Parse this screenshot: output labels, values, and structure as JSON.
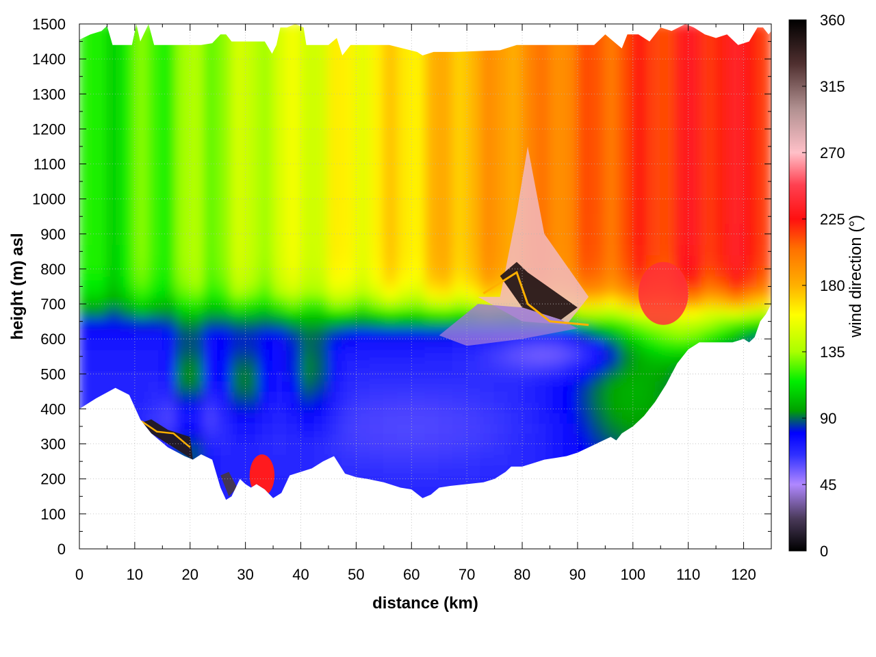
{
  "chart_data": {
    "type": "heatmap",
    "title": "",
    "xlabel": "distance (km)",
    "ylabel": "height (m) asl",
    "colorbar_label": "wind direction (°)",
    "xlim": [
      0,
      125
    ],
    "ylim": [
      0,
      1500
    ],
    "x_ticks": [
      0,
      10,
      20,
      30,
      40,
      50,
      60,
      70,
      80,
      90,
      100,
      110,
      120
    ],
    "y_ticks": [
      0,
      100,
      200,
      300,
      400,
      500,
      600,
      700,
      800,
      900,
      1000,
      1100,
      1200,
      1300,
      1400,
      1500
    ],
    "colorbar_range": [
      0,
      360
    ],
    "colorbar_ticks": [
      0,
      45,
      90,
      135,
      180,
      225,
      270,
      315,
      360
    ],
    "grid": true,
    "colorbar_stops": [
      {
        "value": 0,
        "color": "#000000"
      },
      {
        "value": 22,
        "color": "#4a3a5a"
      },
      {
        "value": 45,
        "color": "#b088ff"
      },
      {
        "value": 65,
        "color": "#3030ff"
      },
      {
        "value": 80,
        "color": "#0000ff"
      },
      {
        "value": 95,
        "color": "#00a000"
      },
      {
        "value": 115,
        "color": "#00ee00"
      },
      {
        "value": 135,
        "color": "#aaff00"
      },
      {
        "value": 160,
        "color": "#ffff00"
      },
      {
        "value": 180,
        "color": "#ffb000"
      },
      {
        "value": 205,
        "color": "#ff7000"
      },
      {
        "value": 225,
        "color": "#ff1010"
      },
      {
        "value": 248,
        "color": "#ff4050"
      },
      {
        "value": 270,
        "color": "#ffc0c8"
      },
      {
        "value": 300,
        "color": "#b09090"
      },
      {
        "value": 330,
        "color": "#503030"
      },
      {
        "value": 360,
        "color": "#000000"
      }
    ],
    "terrain_bottom": {
      "x": [
        0,
        3,
        6.5,
        9,
        11,
        13,
        16,
        19,
        20.5,
        22,
        24,
        25.5,
        26.5,
        27.5,
        29,
        30,
        31,
        32,
        33.5,
        35,
        36.5,
        38,
        40,
        42,
        44,
        46,
        47,
        48,
        49,
        50,
        52,
        55,
        58,
        60,
        62,
        63.5,
        65,
        67,
        70,
        73,
        75,
        77,
        78,
        80,
        82,
        84,
        86,
        88,
        90,
        92,
        94,
        96,
        97,
        98,
        100,
        102,
        104,
        106,
        108,
        110,
        112,
        114,
        116,
        118,
        120,
        121,
        122,
        123,
        124,
        125
      ],
      "y": [
        400,
        430,
        460,
        440,
        370,
        330,
        290,
        265,
        255,
        270,
        255,
        175,
        140,
        150,
        200,
        185,
        175,
        185,
        170,
        145,
        160,
        210,
        220,
        230,
        250,
        265,
        240,
        215,
        210,
        205,
        200,
        190,
        175,
        170,
        145,
        155,
        175,
        180,
        185,
        190,
        200,
        220,
        235,
        235,
        245,
        255,
        260,
        265,
        275,
        290,
        305,
        320,
        310,
        330,
        350,
        380,
        420,
        470,
        530,
        570,
        590,
        590,
        590,
        590,
        600,
        590,
        605,
        650,
        670,
        700
      ]
    },
    "terrain_top": {
      "x": [
        0,
        2,
        4,
        5,
        6,
        9.5,
        10.3,
        11,
        12.5,
        13.5,
        17,
        22,
        24,
        25.5,
        26.5,
        27.5,
        28.8,
        30,
        31,
        33.5,
        34.8,
        35.6,
        36.3,
        37.5,
        39,
        40.5,
        41,
        42,
        45,
        46.5,
        47.5,
        49,
        52,
        56,
        61,
        62,
        64,
        68,
        76,
        79,
        84,
        89,
        93,
        95,
        98,
        99,
        101,
        103,
        105,
        107,
        109.5,
        111,
        113,
        115,
        117,
        119,
        121,
        122.5,
        123.5,
        124.5,
        125
      ],
      "y": [
        1455,
        1470,
        1480,
        1495,
        1440,
        1440,
        1500,
        1450,
        1500,
        1440,
        1440,
        1440,
        1445,
        1470,
        1470,
        1450,
        1450,
        1450,
        1450,
        1450,
        1415,
        1440,
        1490,
        1490,
        1500,
        1490,
        1440,
        1440,
        1440,
        1460,
        1410,
        1440,
        1440,
        1440,
        1420,
        1410,
        1420,
        1420,
        1425,
        1440,
        1440,
        1440,
        1440,
        1470,
        1430,
        1470,
        1470,
        1450,
        1490,
        1480,
        1500,
        1490,
        1470,
        1460,
        1470,
        1440,
        1450,
        1490,
        1490,
        1470,
        1480
      ]
    }
  }
}
